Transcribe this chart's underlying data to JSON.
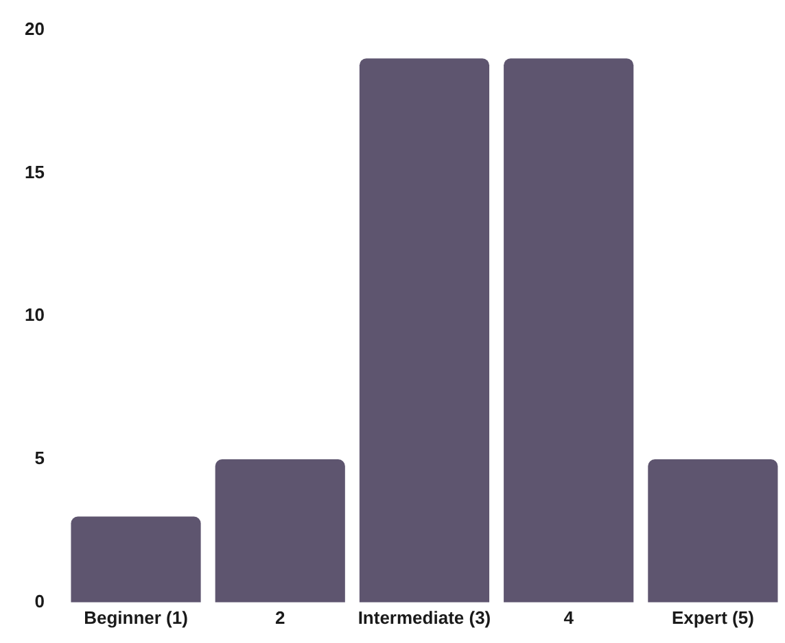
{
  "chart_data": {
    "type": "bar",
    "categories": [
      "Beginner (1)",
      "2",
      "Intermediate (3)",
      "4",
      "Expert (5)"
    ],
    "values": [
      3,
      5,
      19,
      19,
      5
    ],
    "color": "#5e556f",
    "ylim": [
      0,
      20
    ],
    "yticks": [
      0,
      5,
      10,
      15,
      20
    ],
    "grid": false,
    "legend": false
  }
}
